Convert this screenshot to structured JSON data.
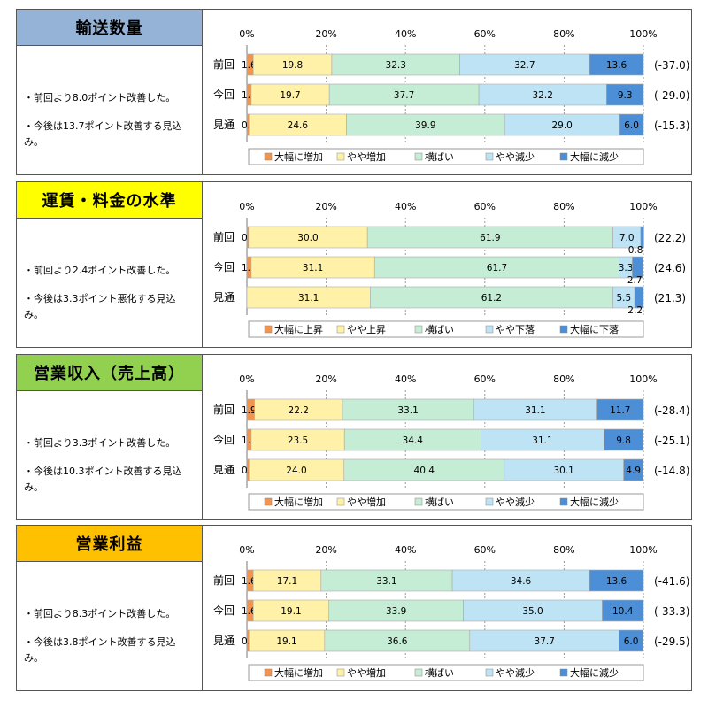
{
  "colors": {
    "title_blue": "#95b3d7",
    "title_yellow": "#ffff00",
    "title_green": "#92d050",
    "title_orange": "#ffc000",
    "sharp_up": "#f0944e",
    "slight_up": "#fff2a8",
    "flat": "#c5ecd4",
    "slight_down": "#bde3f4",
    "sharp_down": "#4d8fd6"
  },
  "axis_ticks": [
    "0%",
    "20%",
    "40%",
    "60%",
    "80%",
    "100%"
  ],
  "panels": [
    {
      "title": "輸送数量",
      "title_color": "#95b3d7",
      "notes": [
        "・前回より8.0ポイント改善した。",
        "・今後は13.7ポイント改善する見込み。"
      ],
      "chart_data": {
        "type": "bar",
        "orientation": "horizontal-stacked-100",
        "categories": [
          "前回",
          "今回",
          "見通"
        ],
        "series": [
          {
            "name": "大幅に増加",
            "values": [
              1.6,
              1.1,
              0.5
            ]
          },
          {
            "name": "やや増加",
            "values": [
              19.8,
              19.7,
              24.6
            ]
          },
          {
            "name": "横ばい",
            "values": [
              32.3,
              37.7,
              39.9
            ]
          },
          {
            "name": "やや減少",
            "values": [
              32.7,
              32.2,
              29.0
            ]
          },
          {
            "name": "大幅に減少",
            "values": [
              13.6,
              9.3,
              6.0
            ]
          }
        ],
        "di": [
          "(-37.0)",
          "(-29.0)",
          "(-15.3)"
        ],
        "xlim": [
          0,
          100
        ]
      }
    },
    {
      "title": "運賃・料金の水準",
      "title_color": "#ffff00",
      "notes": [
        "・前回より2.4ポイント改善した。",
        "・今後は3.3ポイント悪化する見込み。"
      ],
      "chart_data": {
        "type": "bar",
        "orientation": "horizontal-stacked-100",
        "categories": [
          "前回",
          "今回",
          "見通"
        ],
        "series": [
          {
            "name": "大幅に上昇",
            "values": [
              0.4,
              1.1,
              0.0
            ]
          },
          {
            "name": "やや上昇",
            "values": [
              30.0,
              31.1,
              31.1
            ]
          },
          {
            "name": "横ばい",
            "values": [
              61.9,
              61.7,
              61.2
            ]
          },
          {
            "name": "やや下落",
            "values": [
              7.0,
              3.3,
              5.5
            ]
          },
          {
            "name": "大幅に下落",
            "values": [
              0.8,
              2.7,
              2.2
            ]
          }
        ],
        "di": [
          "(22.2)",
          "(24.6)",
          "(21.3)"
        ],
        "xlim": [
          0,
          100
        ]
      }
    },
    {
      "title": "営業収入（売上高）",
      "title_color": "#92d050",
      "notes": [
        "・前回より3.3ポイント改善した。",
        "・今後は10.3ポイント改善する見込み。"
      ],
      "chart_data": {
        "type": "bar",
        "orientation": "horizontal-stacked-100",
        "categories": [
          "前回",
          "今回",
          "見通"
        ],
        "series": [
          {
            "name": "大幅に増加",
            "values": [
              1.9,
              1.1,
              0.5
            ]
          },
          {
            "name": "やや増加",
            "values": [
              22.2,
              23.5,
              24.0
            ]
          },
          {
            "name": "横ばい",
            "values": [
              33.1,
              34.4,
              40.4
            ]
          },
          {
            "name": "やや減少",
            "values": [
              31.1,
              31.1,
              30.1
            ]
          },
          {
            "name": "大幅に減少",
            "values": [
              11.7,
              9.8,
              4.9
            ]
          }
        ],
        "di": [
          "(-28.4)",
          "(-25.1)",
          "(-14.8)"
        ],
        "xlim": [
          0,
          100
        ]
      }
    },
    {
      "title": "営業利益",
      "title_color": "#ffc000",
      "notes": [
        "・前回より8.3ポイント改善した。",
        "・今後は3.8ポイント改善する見込み。"
      ],
      "chart_data": {
        "type": "bar",
        "orientation": "horizontal-stacked-100",
        "categories": [
          "前回",
          "今回",
          "見通"
        ],
        "series": [
          {
            "name": "大幅に増加",
            "values": [
              1.6,
              1.6,
              0.5
            ]
          },
          {
            "name": "やや増加",
            "values": [
              17.1,
              19.1,
              19.1
            ]
          },
          {
            "name": "横ばい",
            "values": [
              33.1,
              33.9,
              36.6
            ]
          },
          {
            "name": "やや減少",
            "values": [
              34.6,
              35.0,
              37.7
            ]
          },
          {
            "name": "大幅に減少",
            "values": [
              13.6,
              10.4,
              6.0
            ]
          }
        ],
        "di": [
          "(-41.6)",
          "(-33.3)",
          "(-29.5)"
        ],
        "xlim": [
          0,
          100
        ]
      }
    }
  ]
}
